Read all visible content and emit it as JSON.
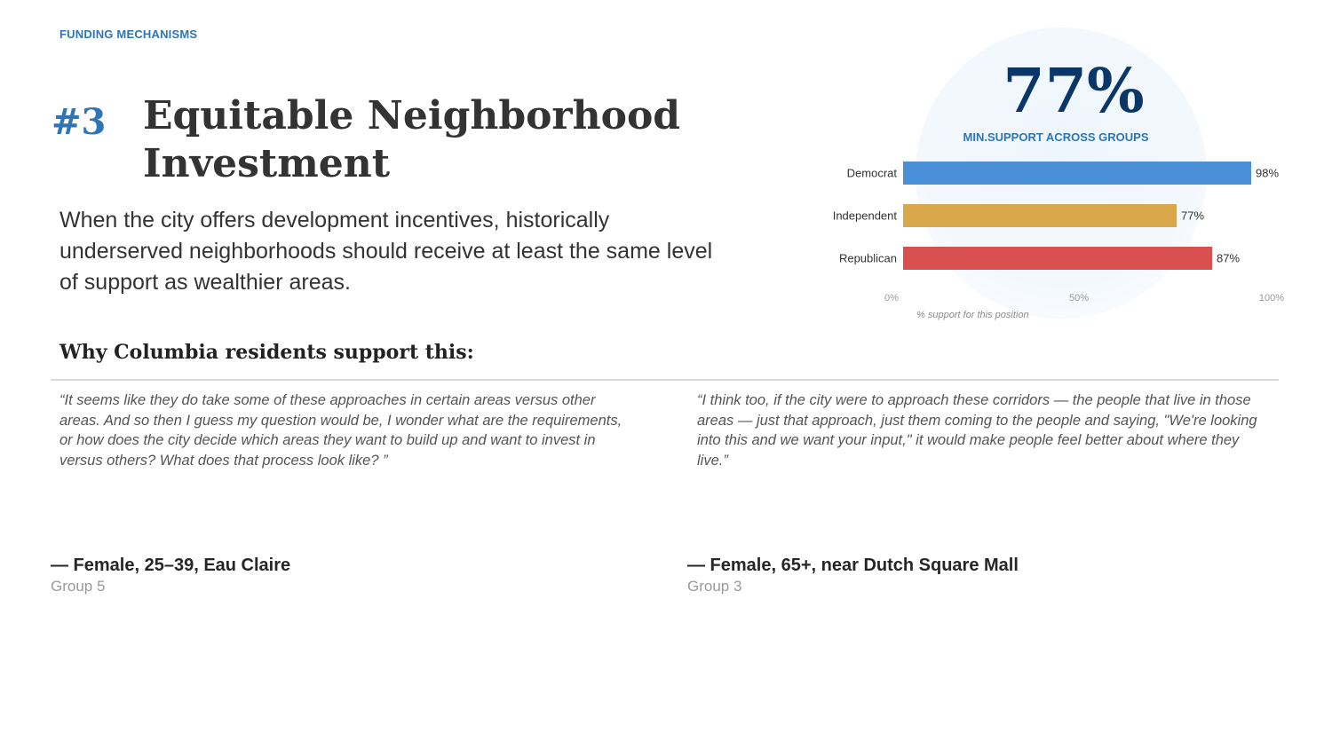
{
  "header": {
    "section_label": "FUNDING MECHANISMS",
    "rank": "#3",
    "title": "Equitable Neighborhood Investment"
  },
  "statement": "When the city offers development incentives, historically underserved neighborhoods should receive at least the same level of support as wealthier areas.",
  "stat": {
    "value": "77%",
    "caption": "MIN.SUPPORT ACROSS GROUPS"
  },
  "chart_data": {
    "type": "bar",
    "orientation": "horizontal",
    "categories": [
      "Democrat",
      "Independent",
      "Republican"
    ],
    "values": [
      98,
      77,
      87
    ],
    "value_labels": [
      "98%",
      "77%",
      "87%"
    ],
    "colors": [
      "#4a90d9",
      "#d9a84a",
      "#d94f4f"
    ],
    "xlim": [
      0,
      100
    ],
    "x_ticks": [
      "0%",
      "50%",
      "100%"
    ],
    "note": "% support for this position",
    "grid": false
  },
  "why": {
    "heading": "Why Columbia residents support this:"
  },
  "quotes": [
    {
      "text": "“It seems like they do take some of these approaches in certain areas versus other areas. And so then I guess my question would be, I wonder what are the requirements, or how does the city decide which areas they want to build up and want to invest in versus others? What does that process look like? ”",
      "attribution": "— Female, 25–39, Eau Claire",
      "group": "Group 5"
    },
    {
      "text": "“I think too, if the city were to approach these corridors — the people that live in those areas — just that approach, just them coming to the people and saying, \"We're looking into this and we want your input,\" it would make people feel better about where they live.”",
      "attribution": "— Female, 65+, near Dutch Square Mall",
      "group": "Group 3"
    }
  ]
}
